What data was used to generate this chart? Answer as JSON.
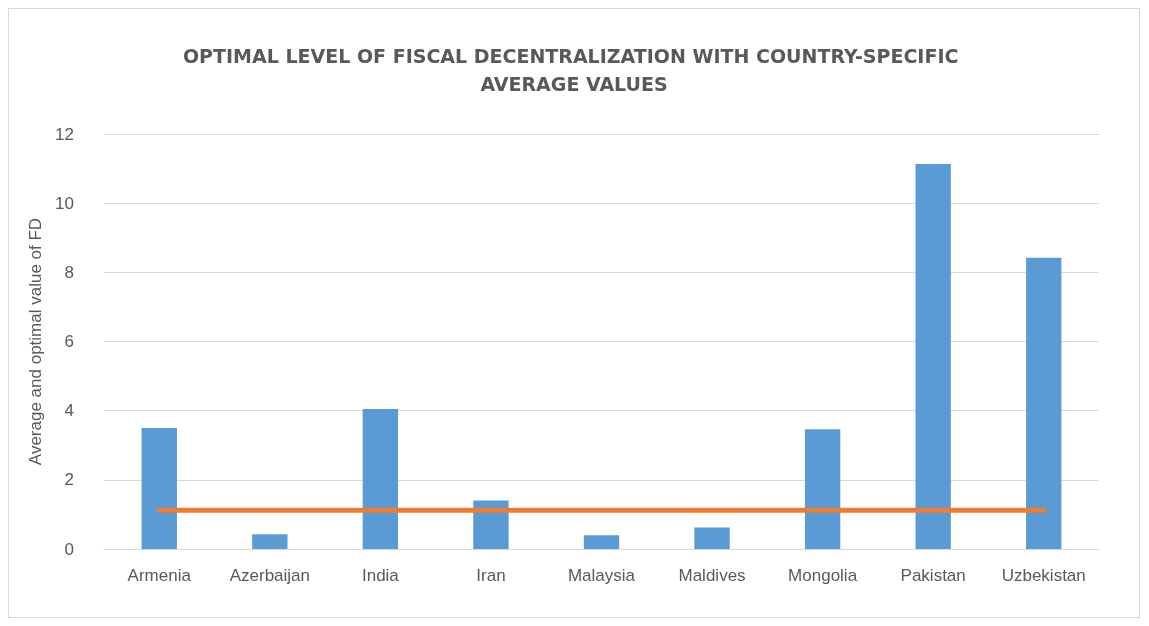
{
  "chart_data": {
    "type": "bar",
    "title": "OPTIMAL LEVEL OF FISCAL DECENTRALIZATION WITH COUNTRY-SPECIFIC AVERAGE VALUES",
    "ylabel": "Average and optimal value of FD",
    "categories": [
      "Armenia",
      "Azerbaijan",
      "India",
      "Iran",
      "Malaysia",
      "Maldives",
      "Mongolia",
      "Pakistan",
      "Uzbekistan"
    ],
    "series": [
      {
        "color": "#5b9bd5",
        "values": [
          3.5,
          0.43,
          4.05,
          1.4,
          0.4,
          0.62,
          3.46,
          11.13,
          8.42
        ]
      },
      {
        "type": "line",
        "color": "#ed7d31",
        "values": [
          1.12,
          1.12,
          1.12,
          1.12,
          1.12,
          1.12,
          1.12,
          1.12,
          1.12
        ]
      }
    ],
    "ylim": [
      0,
      12
    ],
    "yticks": [
      0,
      2,
      4,
      6,
      8,
      10,
      12
    ],
    "grid": "y",
    "marker": "none"
  }
}
